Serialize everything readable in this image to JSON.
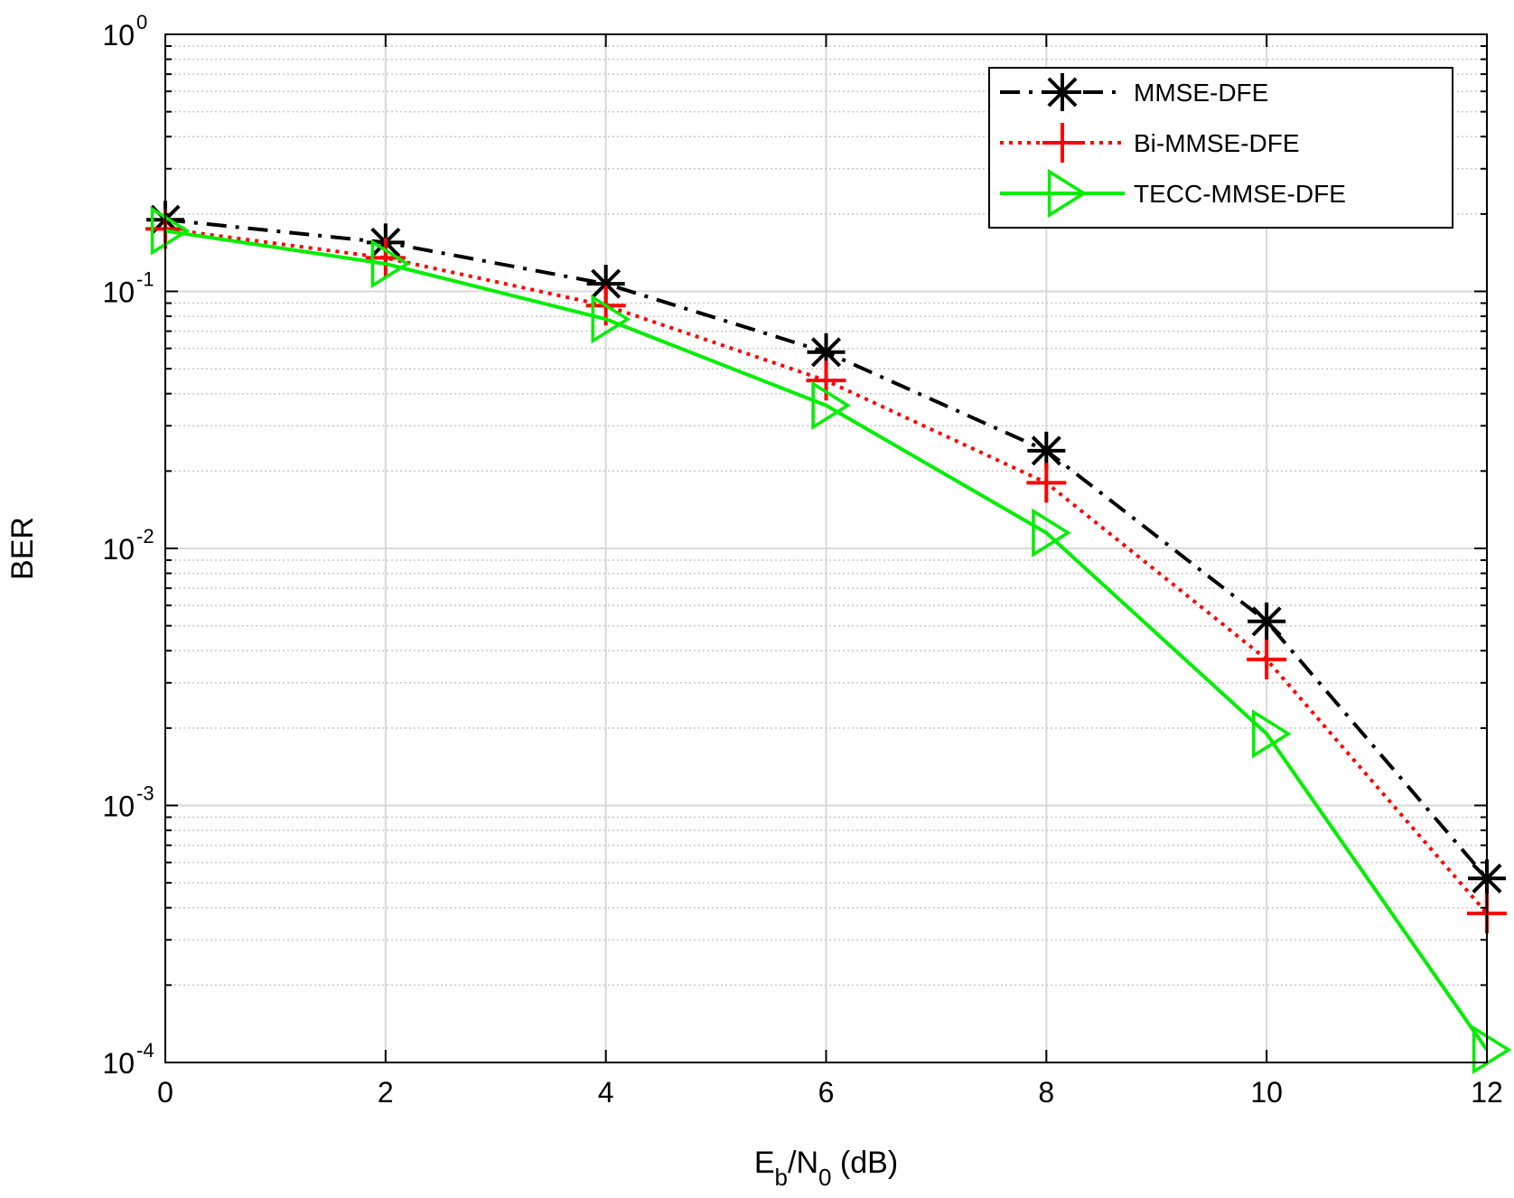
{
  "chart_data": {
    "type": "line",
    "xlabel": {
      "main": "E",
      "sub1": "b",
      "mid": "/N",
      "sub2": "0",
      "tail": " (dB)"
    },
    "ylabel": "BER",
    "x": [
      0,
      2,
      4,
      6,
      8,
      10,
      12
    ],
    "xlim": [
      0,
      12
    ],
    "xticks": [
      0,
      2,
      4,
      6,
      8,
      10,
      12
    ],
    "ylim": [
      0.0001,
      1
    ],
    "yscale": "log",
    "yticks": [
      {
        "base": "10",
        "exp": "0",
        "value": 1
      },
      {
        "base": "10",
        "exp": "-1",
        "value": 0.1
      },
      {
        "base": "10",
        "exp": "-2",
        "value": 0.01
      },
      {
        "base": "10",
        "exp": "-3",
        "value": 0.001
      },
      {
        "base": "10",
        "exp": "-4",
        "value": 0.0001
      }
    ],
    "grid": true,
    "legend_position": "top-right",
    "series": [
      {
        "name": "MMSE-DFE",
        "values": [
          0.19,
          0.155,
          0.107,
          0.058,
          0.024,
          0.0052,
          0.00052
        ],
        "color": "#000000",
        "line_style": "dash-dot",
        "marker": "asterisk"
      },
      {
        "name": "Bi-MMSE-DFE",
        "values": [
          0.175,
          0.135,
          0.088,
          0.045,
          0.018,
          0.0037,
          0.00038
        ],
        "color": "#ff0000",
        "line_style": "dotted",
        "marker": "plus"
      },
      {
        "name": "TECC-MMSE-DFE",
        "values": [
          0.172,
          0.128,
          0.078,
          0.036,
          0.0115,
          0.0019,
          0.000112
        ],
        "color": "#00ee00",
        "line_style": "solid",
        "marker": "triangle-right"
      }
    ]
  }
}
